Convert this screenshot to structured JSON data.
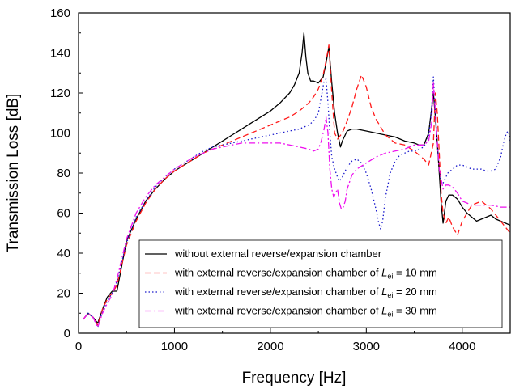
{
  "chart_data": {
    "type": "line",
    "xlabel": "Frequency [Hz]",
    "ylabel": "Transmission Loss [dB]",
    "xlim": [
      0,
      4500
    ],
    "ylim": [
      0,
      160
    ],
    "xticks": [
      0,
      1000,
      2000,
      3000,
      4000
    ],
    "yticks": [
      0,
      20,
      40,
      60,
      80,
      100,
      120,
      140,
      160
    ],
    "grid": false,
    "legend_position": "bottom-right",
    "series": [
      {
        "name": "without external reverse/expansion chamber",
        "legend_parts": [
          "without external reverse/expansion chamber"
        ],
        "color": "#000000",
        "dash": "solid",
        "x": [
          50,
          100,
          150,
          200,
          250,
          300,
          350,
          400,
          500,
          600,
          700,
          800,
          900,
          1000,
          1100,
          1200,
          1300,
          1400,
          1500,
          1600,
          1700,
          1800,
          1900,
          2000,
          2100,
          2200,
          2250,
          2300,
          2330,
          2350,
          2370,
          2390,
          2420,
          2450,
          2500,
          2550,
          2580,
          2610,
          2640,
          2670,
          2700,
          2730,
          2750,
          2800,
          2850,
          2900,
          3000,
          3100,
          3200,
          3300,
          3400,
          3500,
          3550,
          3600,
          3650,
          3680,
          3700,
          3720,
          3740,
          3760,
          3780,
          3800,
          3830,
          3860,
          3900,
          3950,
          4000,
          4050,
          4100,
          4150,
          4200,
          4250,
          4300,
          4350,
          4400,
          4450,
          4500
        ],
        "y": [
          7,
          10,
          8,
          5,
          12,
          18,
          21,
          21,
          46,
          57,
          66,
          72,
          77,
          81,
          84,
          87,
          90,
          93,
          96,
          99,
          102,
          105,
          108,
          111,
          115,
          120,
          124,
          130,
          140,
          150,
          138,
          130,
          126,
          126,
          125,
          128,
          135,
          143,
          125,
          110,
          100,
          93,
          96,
          101,
          102,
          102,
          101,
          100,
          99,
          98,
          96,
          95,
          94,
          94,
          100,
          112,
          120,
          108,
          95,
          80,
          65,
          55,
          66,
          69,
          69,
          67,
          63,
          60,
          58,
          56,
          57,
          58,
          59,
          57,
          56,
          55,
          54
        ]
      },
      {
        "name": "with external reverse/expansion chamber of Lei = 10 mm",
        "legend_parts": [
          "with external reverse/expansion chamber of ",
          "L",
          "ei",
          " = 10 mm"
        ],
        "color": "#ff1a1a",
        "dash": "dashed",
        "x": [
          50,
          100,
          150,
          200,
          250,
          300,
          350,
          400,
          500,
          600,
          700,
          800,
          900,
          1000,
          1100,
          1200,
          1300,
          1400,
          1500,
          1600,
          1700,
          1800,
          1900,
          2000,
          2100,
          2200,
          2300,
          2400,
          2450,
          2500,
          2550,
          2580,
          2610,
          2640,
          2670,
          2700,
          2750,
          2800,
          2850,
          2900,
          2950,
          3000,
          3050,
          3100,
          3200,
          3300,
          3400,
          3500,
          3600,
          3650,
          3700,
          3720,
          3740,
          3760,
          3780,
          3800,
          3830,
          3860,
          3900,
          3950,
          4000,
          4050,
          4100,
          4200,
          4300,
          4400,
          4500
        ],
        "y": [
          7,
          10,
          8,
          4,
          12,
          17,
          20,
          24,
          44,
          56,
          65,
          72,
          77,
          81,
          84,
          87,
          90,
          92,
          94,
          96,
          98,
          100,
          102,
          104,
          106,
          108,
          111,
          115,
          118,
          122,
          129,
          136,
          144,
          120,
          100,
          97,
          100,
          106,
          113,
          122,
          129,
          123,
          113,
          107,
          99,
          95,
          94,
          91,
          87,
          84,
          95,
          120,
          110,
          90,
          70,
          60,
          55,
          58,
          53,
          49,
          56,
          60,
          64,
          66,
          62,
          56,
          50
        ]
      },
      {
        "name": "with external reverse/expansion chamber of Lei = 20 mm",
        "legend_parts": [
          "with external reverse/expansion chamber of ",
          "L",
          "ei",
          " = 20 mm"
        ],
        "color": "#1a1acc",
        "dash": "dotted",
        "x": [
          50,
          100,
          150,
          200,
          250,
          300,
          350,
          400,
          500,
          600,
          700,
          800,
          900,
          1000,
          1100,
          1200,
          1300,
          1400,
          1500,
          1600,
          1700,
          1800,
          1900,
          2000,
          2100,
          2200,
          2300,
          2400,
          2450,
          2500,
          2530,
          2560,
          2580,
          2600,
          2620,
          2640,
          2670,
          2700,
          2720,
          2750,
          2800,
          2850,
          2900,
          2950,
          3000,
          3050,
          3100,
          3130,
          3150,
          3170,
          3200,
          3250,
          3300,
          3350,
          3400,
          3450,
          3500,
          3550,
          3600,
          3650,
          3680,
          3700,
          3720,
          3740,
          3760,
          3780,
          3800,
          3850,
          3900,
          3950,
          4000,
          4050,
          4100,
          4150,
          4200,
          4250,
          4300,
          4350,
          4400,
          4430,
          4460,
          4480,
          4500
        ],
        "y": [
          7,
          10,
          8,
          3,
          11,
          16,
          20,
          26,
          45,
          58,
          66,
          73,
          78,
          82,
          85,
          88,
          91,
          93,
          94,
          95,
          96,
          97,
          98,
          99,
          100,
          101,
          102,
          104,
          106,
          110,
          118,
          126,
          127,
          115,
          100,
          88,
          82,
          78,
          76,
          78,
          83,
          86,
          87,
          85,
          80,
          72,
          62,
          55,
          52,
          56,
          68,
          80,
          86,
          89,
          90,
          91,
          91,
          92,
          93,
          98,
          112,
          128,
          110,
          95,
          82,
          75,
          75,
          80,
          82,
          84,
          84,
          83,
          82,
          82,
          82,
          81,
          81,
          82,
          88,
          95,
          100,
          101,
          96
        ]
      },
      {
        "name": "with external reverse/expansion chamber of Lei = 30 mm",
        "legend_parts": [
          "with external reverse/expansion chamber of ",
          "L",
          "ei",
          " = 30 mm"
        ],
        "color": "#ee11ee",
        "dash": "dashdot",
        "x": [
          50,
          100,
          150,
          200,
          250,
          300,
          350,
          400,
          500,
          600,
          700,
          800,
          900,
          1000,
          1100,
          1200,
          1300,
          1400,
          1500,
          1600,
          1700,
          1800,
          1900,
          2000,
          2100,
          2200,
          2300,
          2400,
          2450,
          2500,
          2530,
          2560,
          2580,
          2600,
          2620,
          2640,
          2660,
          2680,
          2700,
          2720,
          2740,
          2760,
          2780,
          2800,
          2850,
          2900,
          3000,
          3100,
          3200,
          3300,
          3400,
          3500,
          3600,
          3650,
          3680,
          3700,
          3720,
          3740,
          3760,
          3780,
          3800,
          3830,
          3860,
          3900,
          3950,
          4000,
          4050,
          4100,
          4200,
          4300,
          4400,
          4500
        ],
        "y": [
          7,
          10,
          8,
          3,
          10,
          15,
          19,
          27,
          47,
          60,
          68,
          74,
          78,
          82,
          85,
          88,
          90,
          92,
          93,
          94,
          95,
          95,
          95,
          95,
          95,
          94,
          93,
          92,
          91,
          92,
          96,
          102,
          108,
          100,
          82,
          72,
          68,
          70,
          72,
          65,
          62,
          63,
          66,
          72,
          79,
          82,
          85,
          88,
          90,
          91,
          92,
          94,
          94,
          96,
          105,
          125,
          110,
          95,
          82,
          77,
          72,
          74,
          74,
          73,
          70,
          66,
          65,
          64,
          64,
          64,
          63,
          63
        ]
      }
    ]
  }
}
